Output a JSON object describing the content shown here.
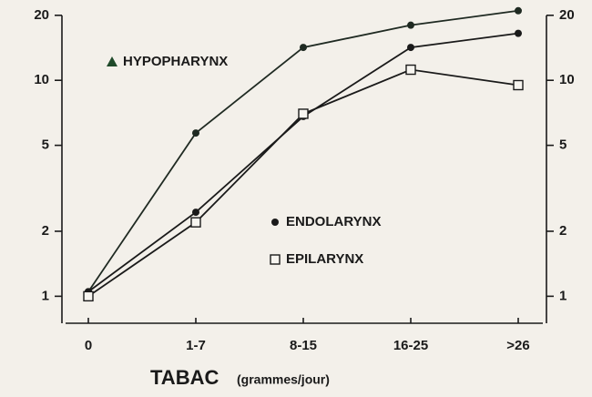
{
  "chart_data": {
    "type": "line",
    "xlabel": "TABAC",
    "xlabel_unit": "(grammes/jour)",
    "categories": [
      "0",
      "1-7",
      "8-15",
      "16-25",
      ">26"
    ],
    "series": [
      {
        "name": "HYPOPHARYNX",
        "color": "#1f2a22",
        "marker": "circle",
        "legend_marker": "triangle",
        "values": [
          1.05,
          5.7,
          14.2,
          18,
          21
        ]
      },
      {
        "name": "ENDOLARYNX",
        "color": "#1a1a1a",
        "marker": "circle",
        "legend_marker": "circle",
        "values": [
          1.05,
          2.45,
          6.8,
          14.2,
          16.5
        ]
      },
      {
        "name": "EPILARYNX",
        "color": "#1a1a1a",
        "marker": "square",
        "legend_marker": "square",
        "values": [
          1.0,
          2.2,
          7.0,
          11.2,
          9.5
        ]
      }
    ],
    "log_y": true,
    "ylim": [
      0.75,
      22
    ],
    "yticks": [
      1,
      2,
      5,
      10,
      20
    ],
    "right_axis": true
  }
}
